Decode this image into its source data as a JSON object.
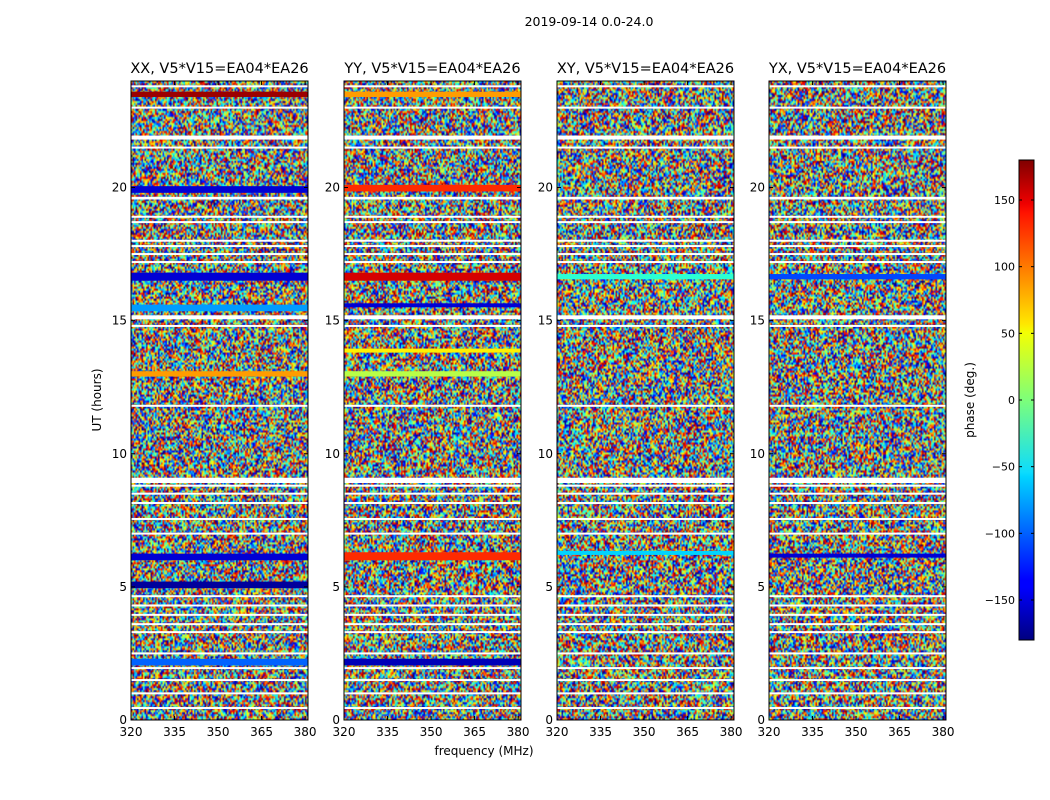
{
  "figure": {
    "suptitle": "2019-09-14 0.0-24.0"
  },
  "chart_data": {
    "type": "heatmap",
    "xlabel": "frequency (MHz)",
    "ylabel": "UT (hours)",
    "xlim": [
      320,
      381
    ],
    "ylim": [
      0,
      24
    ],
    "xticks": [
      320,
      335,
      350,
      365,
      380
    ],
    "yticks": [
      0,
      5,
      10,
      15,
      20
    ],
    "colormap": "jet",
    "panels": [
      {
        "title": "XX, V5*V15=EA04*EA26",
        "bands": [
          {
            "t0": 2.05,
            "t1": 2.3,
            "value": -100
          },
          {
            "t0": 4.95,
            "t1": 5.2,
            "value": -170
          },
          {
            "t0": 6.0,
            "t1": 6.25,
            "value": -150
          },
          {
            "t0": 12.9,
            "t1": 13.1,
            "value": 80
          },
          {
            "t0": 15.35,
            "t1": 15.6,
            "value": -80
          },
          {
            "t0": 16.5,
            "t1": 16.8,
            "value": -150
          },
          {
            "t0": 19.8,
            "t1": 20.05,
            "value": -150
          },
          {
            "t0": 23.4,
            "t1": 23.6,
            "value": 170
          }
        ]
      },
      {
        "title": "YY, V5*V15=EA04*EA26",
        "bands": [
          {
            "t0": 2.05,
            "t1": 2.3,
            "value": -160
          },
          {
            "t0": 6.0,
            "t1": 6.3,
            "value": 120
          },
          {
            "t0": 12.9,
            "t1": 13.1,
            "value": 20
          },
          {
            "t0": 13.8,
            "t1": 13.95,
            "value": 50
          },
          {
            "t0": 15.5,
            "t1": 15.65,
            "value": -150
          },
          {
            "t0": 16.5,
            "t1": 16.8,
            "value": 150
          },
          {
            "t0": 19.85,
            "t1": 20.1,
            "value": 120
          },
          {
            "t0": 23.4,
            "t1": 23.6,
            "value": 80
          }
        ]
      },
      {
        "title": "XY, V5*V15=EA04*EA26",
        "bands": [
          {
            "t0": 6.2,
            "t1": 6.35,
            "value": -60
          },
          {
            "t0": 16.55,
            "t1": 16.75,
            "value": -30
          }
        ]
      },
      {
        "title": "YX, V5*V15=EA04*EA26",
        "bands": [
          {
            "t0": 6.1,
            "t1": 6.25,
            "value": -150
          },
          {
            "t0": 16.55,
            "t1": 16.75,
            "value": -110
          }
        ]
      }
    ],
    "flagged_rows_hours": [
      0.45,
      1.0,
      1.5,
      1.95,
      2.5,
      3.3,
      3.6,
      3.95,
      4.3,
      4.65,
      7.0,
      7.55,
      8.15,
      8.5,
      8.8,
      9.0,
      11.8,
      14.8,
      15.1,
      17.2,
      17.5,
      17.8,
      18.0,
      18.7,
      18.9,
      19.6,
      21.5,
      21.9,
      23.0,
      23.8
    ],
    "blank_bands_hours": [
      [
        15.05,
        15.2
      ],
      [
        8.9,
        9.1
      ],
      [
        19.55,
        19.65
      ],
      [
        21.8,
        21.95
      ]
    ],
    "colorbar": {
      "label": "phase (deg.)",
      "range": [
        -180,
        180
      ],
      "ticks": [
        -150,
        -100,
        -50,
        0,
        50,
        100,
        150
      ],
      "tick_labels": [
        "−150",
        "−100",
        "−50",
        "0",
        "50",
        "100",
        "150"
      ]
    }
  }
}
